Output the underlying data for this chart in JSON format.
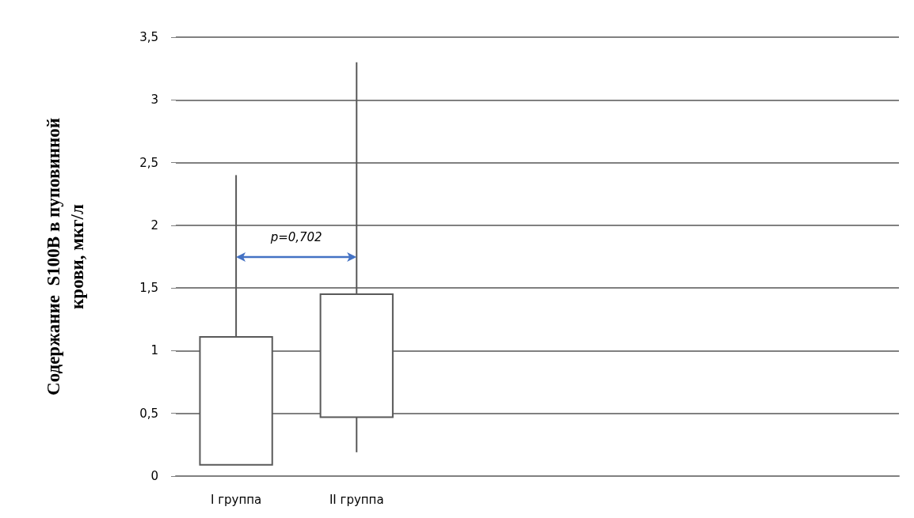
{
  "chart_data": {
    "type": "box",
    "ylabel": "Содержание  S100B в пуповинной\nкрови, мкг/л",
    "categories": [
      "I группа",
      "II группа",
      null,
      null,
      null,
      null
    ],
    "boxes": [
      {
        "low": 0.09,
        "q1": 0.09,
        "q3": 1.11,
        "high": 2.4
      },
      {
        "low": 0.19,
        "q1": 0.47,
        "q3": 1.45,
        "high": 3.3
      },
      null,
      null,
      null,
      null
    ],
    "color": "#595959",
    "ylim": [
      0,
      3.5
    ],
    "yticks": [
      0,
      {
        "value": 0.5,
        "label": "0,5"
      },
      1,
      {
        "value": 1.5,
        "label": "1,5"
      },
      2,
      {
        "value": 2.5,
        "label": "2,5"
      },
      3,
      {
        "value": 3.5,
        "label": "3,5"
      }
    ],
    "grid": "y",
    "annotations": [
      "p=0,702"
    ]
  }
}
